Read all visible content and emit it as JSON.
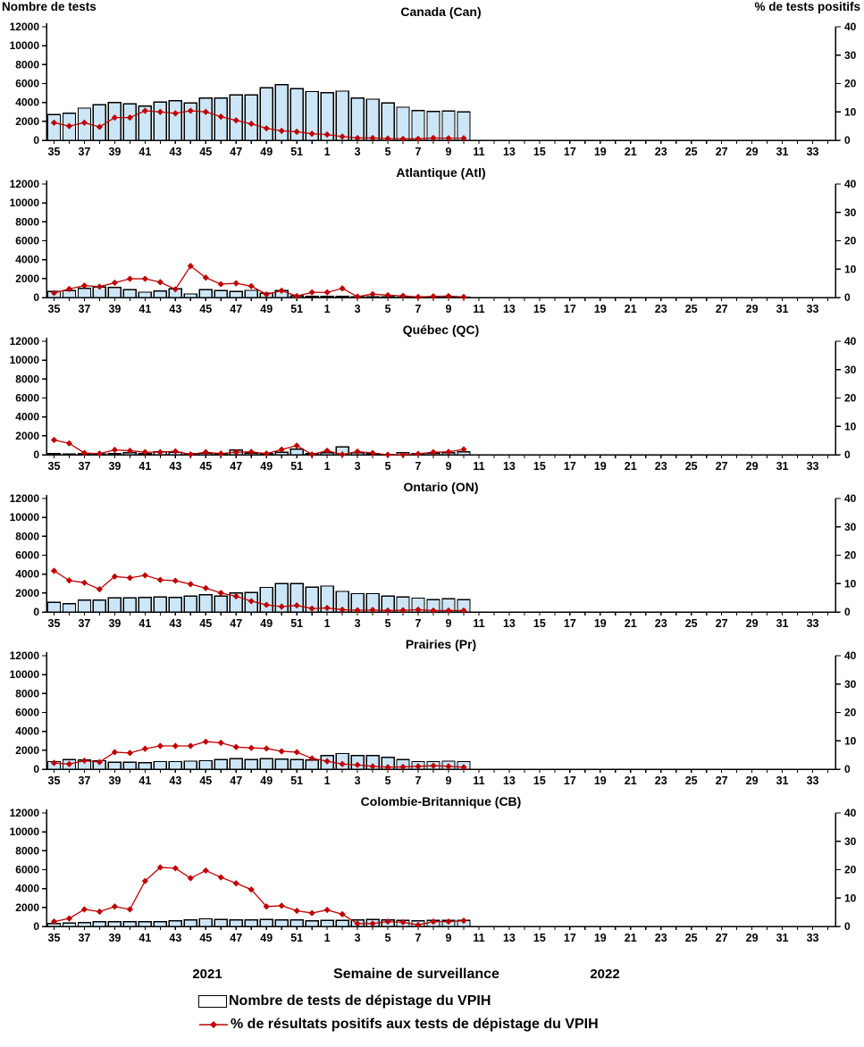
{
  "header": {
    "left_axis_caption": "Nombre de tests",
    "right_axis_caption": "% de tests positifs"
  },
  "footer": {
    "year_left": "2021",
    "x_axis_title": "Semaine de surveillance",
    "year_right": "2022"
  },
  "legend": {
    "bar_label": "Nombre de tests de dépistage du VPIH",
    "line_label": "% de résultats positifs aux tests de dépistage du VPIH"
  },
  "colors": {
    "bar_fill": "#CDE6F7",
    "bar_border": "#000000",
    "line_color": "#C00000",
    "text_color": "#000000"
  },
  "chart_data": {
    "type": "combo bar+line, 6 stacked panels",
    "x_label": "Semaine de surveillance",
    "x_weeks": [
      "35",
      "36",
      "37",
      "38",
      "39",
      "40",
      "41",
      "42",
      "43",
      "44",
      "45",
      "46",
      "47",
      "48",
      "49",
      "50",
      "51",
      "52",
      "1",
      "2",
      "3",
      "4",
      "5",
      "6",
      "7",
      "8",
      "9",
      "10",
      "11",
      "12",
      "13",
      "14",
      "15",
      "16",
      "17",
      "18",
      "19",
      "20",
      "21",
      "22",
      "23",
      "24",
      "25",
      "26",
      "27",
      "28",
      "29",
      "30",
      "31",
      "32",
      "33",
      "34"
    ],
    "x_years": {
      "2021_weeks": "35-52",
      "2022_weeks": "1-34"
    },
    "weeks_with_data": [
      "35",
      "36",
      "37",
      "38",
      "39",
      "40",
      "41",
      "42",
      "43",
      "44",
      "45",
      "46",
      "47",
      "48",
      "49",
      "50",
      "51",
      "52",
      "1",
      "2",
      "3",
      "4",
      "5",
      "6",
      "7",
      "8",
      "9",
      "10"
    ],
    "left_axis": {
      "label": "Nombre de tests",
      "min": 0,
      "max": 12000,
      "step": 2000
    },
    "right_axis": {
      "label": "% de tests positifs",
      "min": 0,
      "max": 40,
      "step": 10
    },
    "grid": false,
    "panels": [
      {
        "title": "Canada (Can)",
        "tests": [
          2700,
          2850,
          3400,
          3750,
          4000,
          3850,
          3600,
          4050,
          4200,
          3950,
          4450,
          4450,
          4800,
          4800,
          5550,
          5900,
          5450,
          5150,
          5050,
          5200,
          4450,
          4350,
          3950,
          3500,
          3150,
          3050,
          3100,
          3000
        ],
        "pct_positive": [
          6.2,
          5.0,
          6.2,
          4.7,
          8.0,
          8.0,
          10.4,
          10.0,
          9.5,
          10.4,
          10.0,
          8.3,
          7.0,
          5.8,
          4.2,
          3.3,
          3.0,
          2.3,
          2.0,
          1.3,
          0.8,
          0.8,
          0.6,
          0.5,
          0.5,
          0.8,
          0.7,
          0.7
        ]
      },
      {
        "title": "Atlantique (Atl)",
        "tests": [
          650,
          730,
          980,
          1100,
          1050,
          820,
          570,
          700,
          920,
          380,
          820,
          730,
          640,
          760,
          450,
          730,
          160,
          100,
          120,
          100,
          80,
          60,
          60,
          50,
          60,
          80,
          60,
          50
        ],
        "pct_positive": [
          1.6,
          3.0,
          4.2,
          3.8,
          5.2,
          6.6,
          6.6,
          5.4,
          2.9,
          11.1,
          7.0,
          4.7,
          5.0,
          4.0,
          1.1,
          2.4,
          0.5,
          1.8,
          1.8,
          3.2,
          0.3,
          1.2,
          0.8,
          0.6,
          0.2,
          0.4,
          0.5,
          0.2
        ]
      },
      {
        "title": "Québec (QC)",
        "tests": [
          100,
          70,
          100,
          70,
          130,
          200,
          130,
          290,
          260,
          130,
          160,
          130,
          480,
          160,
          130,
          260,
          580,
          100,
          200,
          810,
          200,
          100,
          30,
          230,
          100,
          160,
          200,
          320
        ],
        "pct_positive": [
          5.2,
          4.0,
          0.6,
          0.4,
          1.7,
          1.4,
          0.9,
          0.9,
          1.2,
          0.1,
          0.9,
          0.4,
          0.9,
          1.0,
          0.4,
          1.8,
          3.2,
          0.1,
          1.4,
          0.1,
          1.1,
          0.6,
          0,
          0,
          0.3,
          0.9,
          1.0,
          1.9
        ]
      },
      {
        "title": "Ontario (ON)",
        "tests": [
          1000,
          890,
          1260,
          1260,
          1490,
          1490,
          1520,
          1600,
          1520,
          1690,
          1800,
          1690,
          2000,
          2060,
          2600,
          3000,
          3000,
          2630,
          2740,
          2170,
          1940,
          1940,
          1660,
          1570,
          1460,
          1290,
          1400,
          1290
        ],
        "pct_positive": [
          14.5,
          11.1,
          10.3,
          8.0,
          12.5,
          12.0,
          12.9,
          11.3,
          11.0,
          9.8,
          8.4,
          6.7,
          5.5,
          3.8,
          2.5,
          1.9,
          2.3,
          1.2,
          1.4,
          0.8,
          0.6,
          0.7,
          0.5,
          0.6,
          0.8,
          0.5,
          0.5,
          0.5
        ]
      },
      {
        "title": "Prairies (Pr)",
        "tests": [
          800,
          1000,
          950,
          900,
          750,
          750,
          700,
          800,
          800,
          850,
          900,
          1000,
          1100,
          1000,
          1100,
          1050,
          1000,
          950,
          1450,
          1650,
          1450,
          1450,
          1250,
          1000,
          800,
          800,
          850,
          800
        ],
        "pct_positive": [
          2.2,
          1.8,
          3.0,
          2.5,
          6.0,
          5.7,
          7.2,
          8.2,
          8.2,
          8.2,
          9.7,
          9.3,
          7.8,
          7.5,
          7.3,
          6.3,
          6.0,
          3.8,
          2.8,
          1.8,
          1.5,
          1.0,
          0.7,
          0.8,
          1.0,
          1.2,
          1.0,
          0.7
        ]
      },
      {
        "title": "Colombie-Britannique (CB)",
        "tests": [
          300,
          350,
          400,
          500,
          500,
          500,
          500,
          500,
          600,
          700,
          800,
          750,
          700,
          700,
          750,
          700,
          700,
          600,
          650,
          650,
          700,
          750,
          700,
          650,
          600,
          650,
          650,
          650
        ],
        "pct_positive": [
          1.7,
          2.8,
          6.0,
          5.2,
          7.0,
          6.0,
          16.0,
          20.8,
          20.5,
          17.0,
          19.7,
          17.3,
          15.2,
          13.0,
          7.0,
          7.3,
          5.5,
          4.7,
          5.8,
          4.3,
          1.0,
          1.0,
          1.7,
          1.5,
          0.5,
          1.7,
          1.7,
          2.0
        ]
      }
    ]
  }
}
